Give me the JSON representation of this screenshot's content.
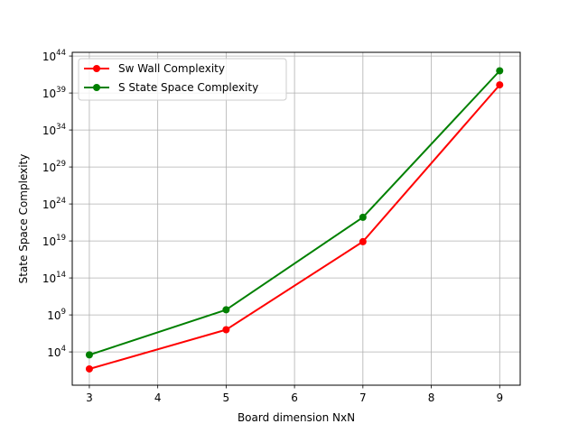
{
  "chart_data": {
    "type": "line",
    "x": [
      3,
      5,
      7,
      9
    ],
    "series": [
      {
        "name": "Sw Wall Complexity",
        "color": "#ff0000",
        "log10_values": [
          1.7,
          7.0,
          18.9,
          40.1
        ]
      },
      {
        "name": "S State Space Complexity",
        "color": "#008000",
        "log10_values": [
          3.6,
          9.7,
          22.2,
          42.0
        ]
      }
    ],
    "xlabel": "Board dimension NxN",
    "ylabel": "State Space Complexity",
    "yscale": "log",
    "xlim": [
      2.75,
      9.3
    ],
    "ylim_log10": [
      -0.5,
      44.5
    ],
    "x_ticks": [
      "3",
      "4",
      "5",
      "6",
      "7",
      "8",
      "9"
    ],
    "x_tick_values": [
      3,
      4,
      5,
      6,
      7,
      8,
      9
    ],
    "y_ticks": [
      {
        "exp": 4,
        "base": "10",
        "sup": "4"
      },
      {
        "exp": 9,
        "base": "10",
        "sup": "9"
      },
      {
        "exp": 14,
        "base": "10",
        "sup": "14"
      },
      {
        "exp": 19,
        "base": "10",
        "sup": "19"
      },
      {
        "exp": 24,
        "base": "10",
        "sup": "24"
      },
      {
        "exp": 29,
        "base": "10",
        "sup": "29"
      },
      {
        "exp": 34,
        "base": "10",
        "sup": "34"
      },
      {
        "exp": 39,
        "base": "10",
        "sup": "39"
      },
      {
        "exp": 44,
        "base": "10",
        "sup": "44"
      }
    ],
    "grid": true,
    "legend": "upper-left"
  }
}
